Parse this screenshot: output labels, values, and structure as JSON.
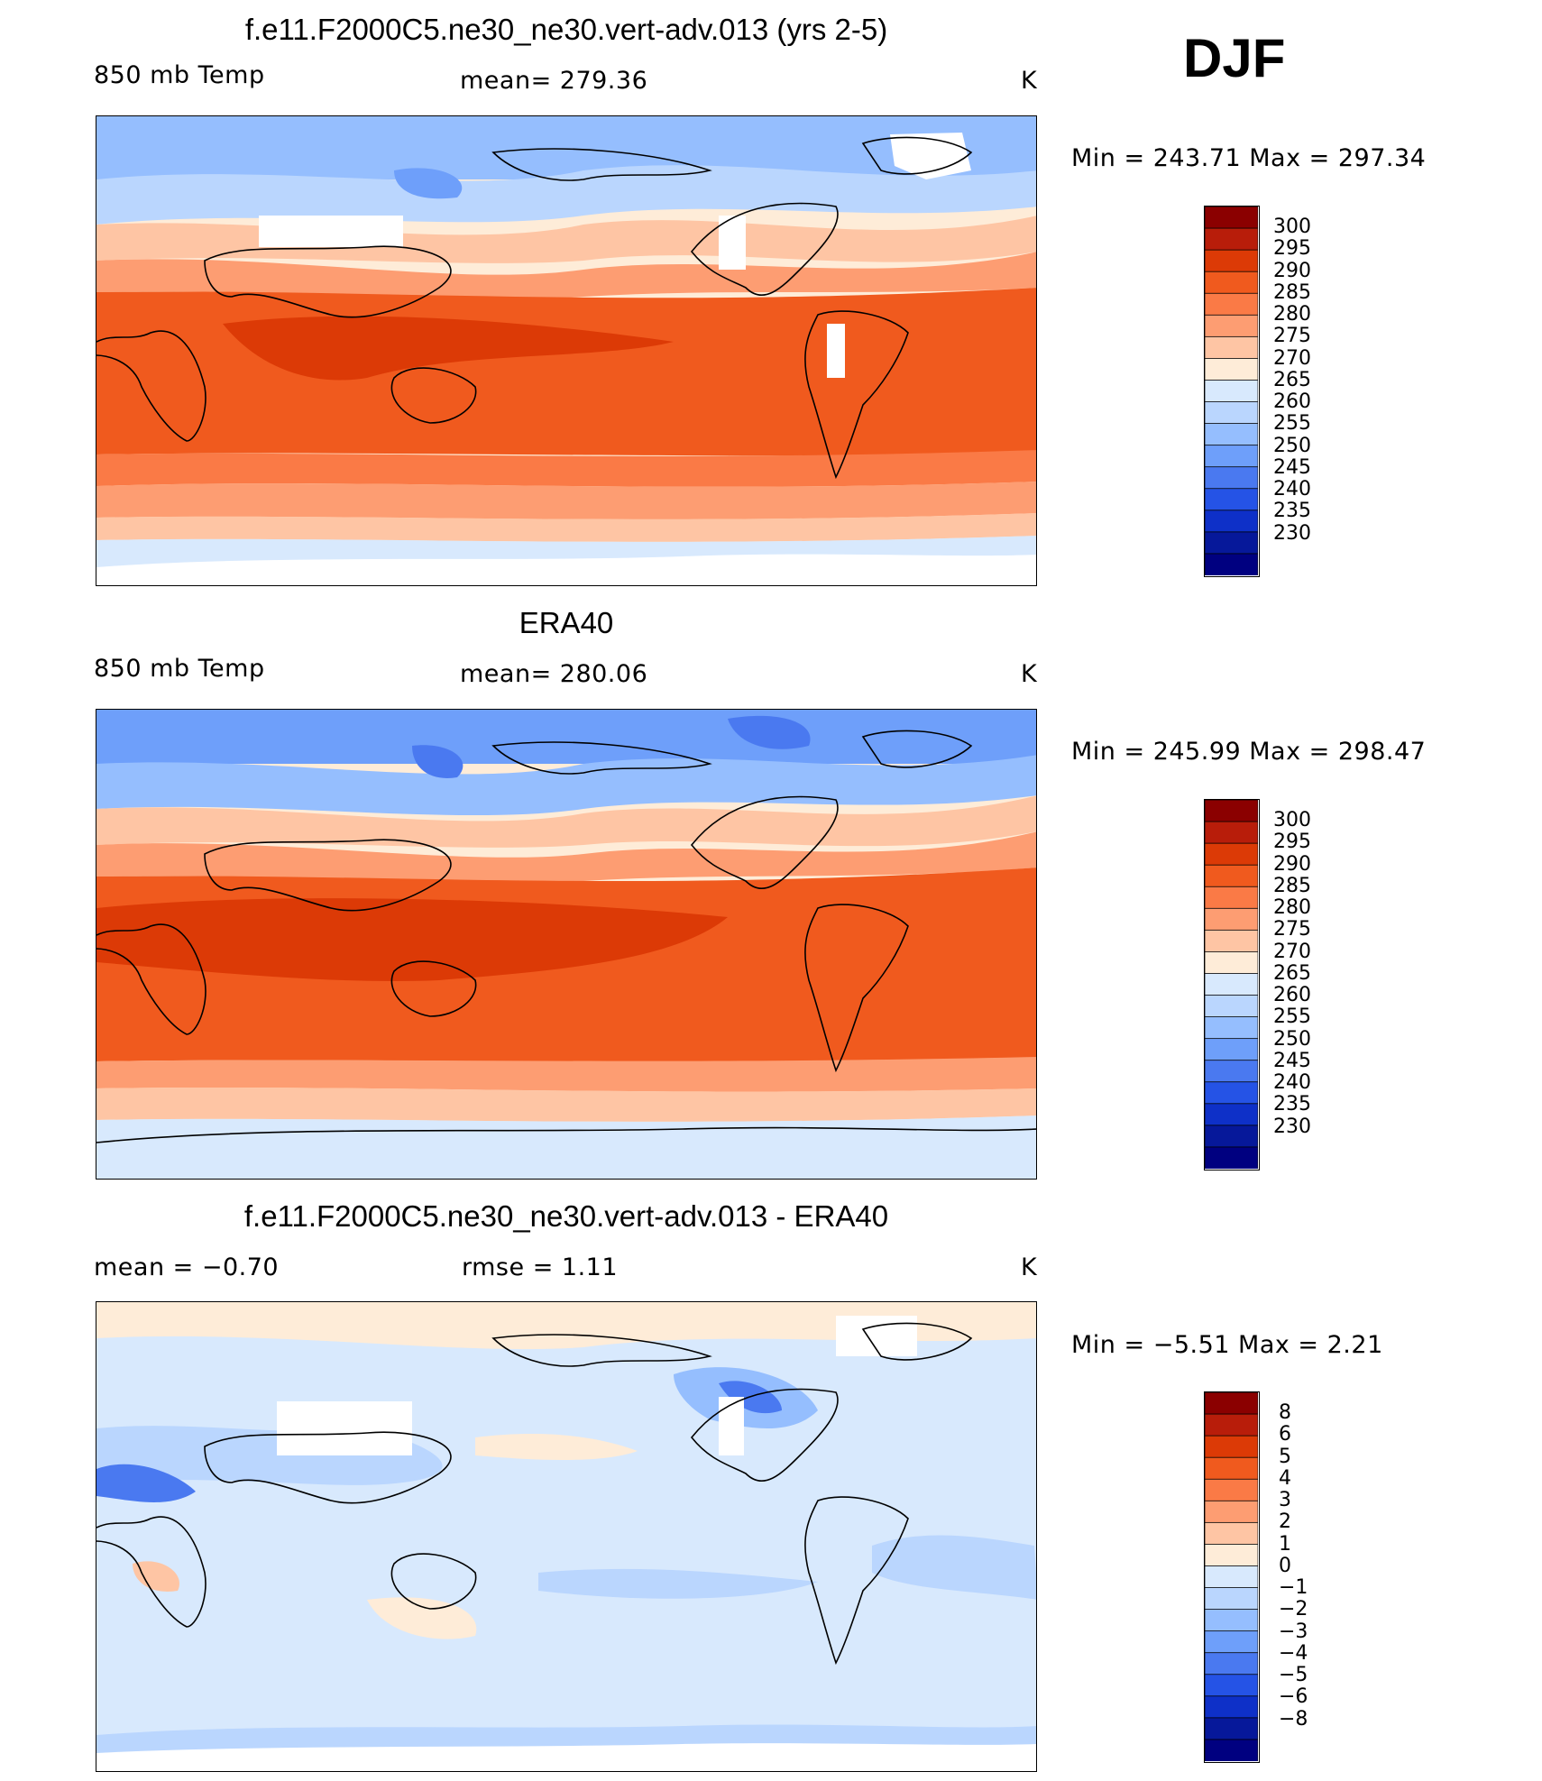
{
  "season": "DJF",
  "chart_data": [
    {
      "type": "heatmap",
      "title": "f.e11.F2000C5.ne30_ne30.vert-adv.013 (yrs 2-5)",
      "variable": "850 mb Temp",
      "stat_left": "850 mb Temp",
      "stat_center": "mean=  279.36",
      "units": "K",
      "mean": 279.36,
      "min": 243.71,
      "max": 297.34,
      "minmax_text": "Min  =  243.71  Max  =  297.34",
      "contour_levels": [
        "300",
        "295",
        "290",
        "285",
        "280",
        "275",
        "270",
        "265",
        "260",
        "255",
        "250",
        "245",
        "240",
        "235",
        "230"
      ],
      "colors": [
        "#8b0000",
        "#b81d0a",
        "#dc3a06",
        "#f05a1e",
        "#fa7a46",
        "#fd9d72",
        "#fec5a4",
        "#feecd8",
        "#d8e9fd",
        "#bad6fe",
        "#95befe",
        "#6e9ffa",
        "#4a79f0",
        "#2553e6",
        "#0e30c8",
        "#06189a",
        "#000080"
      ],
      "missing_color": "#ffffff"
    },
    {
      "type": "heatmap",
      "title": "ERA40",
      "variable": "850 mb Temp",
      "stat_left": "850 mb Temp",
      "stat_center": "mean=  280.06",
      "units": "K",
      "mean": 280.06,
      "min": 245.99,
      "max": 298.47,
      "minmax_text": "Min  =  245.99  Max  =  298.47",
      "contour_levels": [
        "300",
        "295",
        "290",
        "285",
        "280",
        "275",
        "270",
        "265",
        "260",
        "255",
        "250",
        "245",
        "240",
        "235",
        "230"
      ],
      "colors": [
        "#8b0000",
        "#b81d0a",
        "#dc3a06",
        "#f05a1e",
        "#fa7a46",
        "#fd9d72",
        "#fec5a4",
        "#feecd8",
        "#d8e9fd",
        "#bad6fe",
        "#95befe",
        "#6e9ffa",
        "#4a79f0",
        "#2553e6",
        "#0e30c8",
        "#06189a",
        "#000080"
      ],
      "missing_color": "#ffffff"
    },
    {
      "type": "heatmap",
      "title": "f.e11.F2000C5.ne30_ne30.vert-adv.013 - ERA40",
      "stat_left": "mean  =    −0.70",
      "stat_center": "rmse  =     1.11",
      "units": "K",
      "mean": -0.7,
      "rmse": 1.11,
      "min": -5.51,
      "max": 2.21,
      "minmax_text": "Min  =    −5.51  Max  =     2.21",
      "contour_levels": [
        "8",
        "6",
        "5",
        "4",
        "3",
        "2",
        "1",
        "0",
        "−1",
        "−2",
        "−3",
        "−4",
        "−5",
        "−6",
        "−8"
      ],
      "colors": [
        "#8b0000",
        "#b81d0a",
        "#dc3a06",
        "#f05a1e",
        "#fa7a46",
        "#fd9d72",
        "#fec5a4",
        "#feecd8",
        "#d8e9fd",
        "#bad6fe",
        "#95befe",
        "#6e9ffa",
        "#4a79f0",
        "#2553e6",
        "#0e30c8",
        "#06189a",
        "#000080"
      ],
      "missing_color": "#ffffff"
    }
  ]
}
